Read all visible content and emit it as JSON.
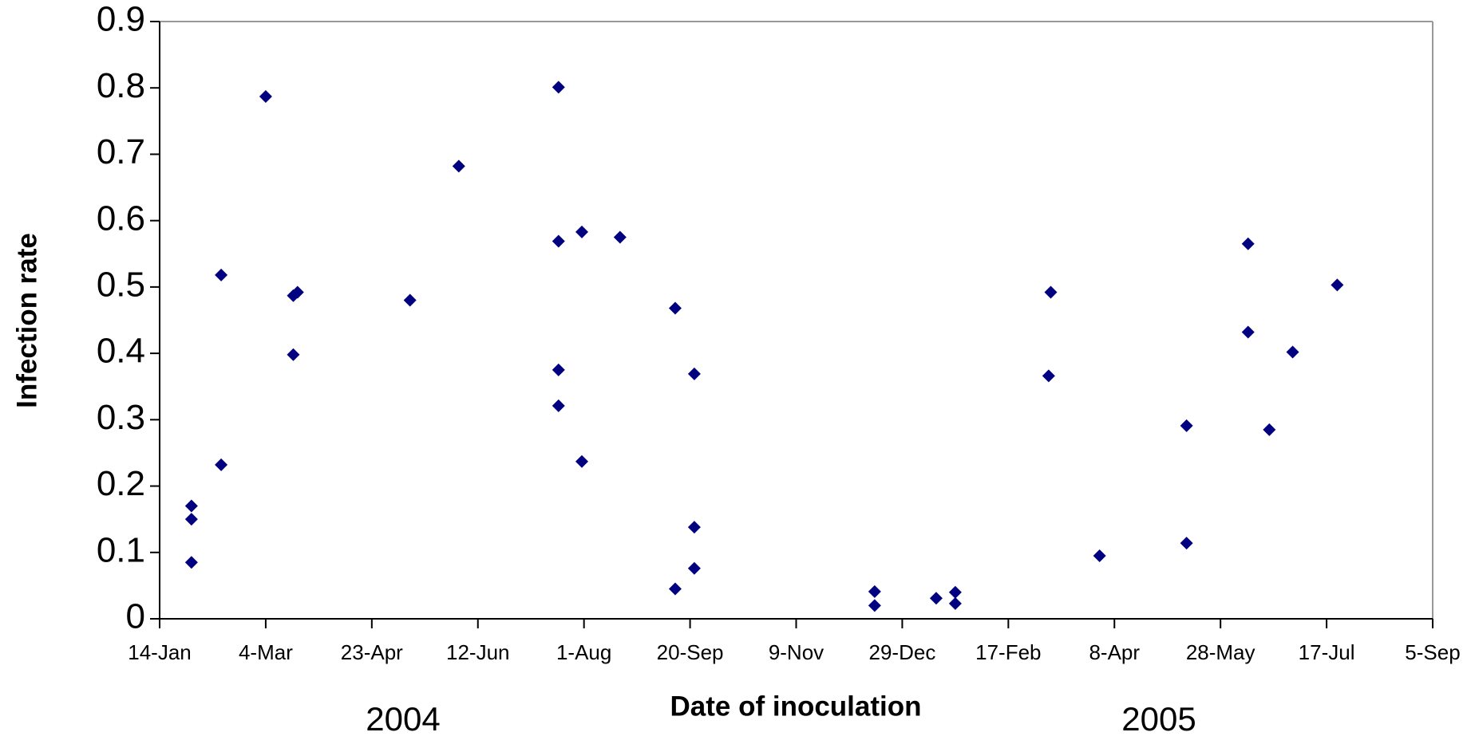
{
  "chart_data": {
    "type": "scatter",
    "x_label": "Date of inoculation",
    "y_label": "Infection rate",
    "annotations": [
      "2004",
      "2005"
    ],
    "color": "#000080",
    "x": [
      38015,
      38015,
      38015,
      38029,
      38029,
      38050,
      38063,
      38063,
      38065,
      38118,
      38141,
      38188,
      38188,
      38188,
      38188,
      38199,
      38199,
      38217,
      38243,
      38243,
      38252,
      38252,
      38252,
      38337,
      38337,
      38366,
      38375,
      38375,
      38420,
      38419,
      38443,
      38484,
      38484,
      38513,
      38513,
      38523,
      38534,
      38555
    ],
    "values": [
      0.17,
      0.15,
      0.085,
      0.518,
      0.232,
      0.787,
      0.398,
      0.487,
      0.492,
      0.48,
      0.682,
      0.801,
      0.569,
      0.375,
      0.321,
      0.583,
      0.237,
      0.575,
      0.468,
      0.045,
      0.369,
      0.138,
      0.076,
      0.041,
      0.02,
      0.031,
      0.04,
      0.023,
      0.492,
      0.366,
      0.095,
      0.291,
      0.114,
      0.565,
      0.432,
      0.285,
      0.402,
      0.503
    ],
    "xlim": [
      38000,
      38600
    ],
    "xticks": [
      {
        "value": 38000,
        "label": "14-Jan"
      },
      {
        "value": 38050,
        "label": "4-Mar"
      },
      {
        "value": 38100,
        "label": "23-Apr"
      },
      {
        "value": 38150,
        "label": "12-Jun"
      },
      {
        "value": 38200,
        "label": "1-Aug"
      },
      {
        "value": 38250,
        "label": "20-Sep"
      },
      {
        "value": 38300,
        "label": "9-Nov"
      },
      {
        "value": 38350,
        "label": "29-Dec"
      },
      {
        "value": 38400,
        "label": "17-Feb"
      },
      {
        "value": 38450,
        "label": "8-Apr"
      },
      {
        "value": 38500,
        "label": "28-May"
      },
      {
        "value": 38550,
        "label": "17-Jul"
      },
      {
        "value": 38600,
        "label": "5-Sep"
      }
    ],
    "ylim": [
      0,
      0.9
    ],
    "yticks": [
      0,
      0.1,
      0.2,
      0.3,
      0.4,
      0.5,
      0.6,
      0.7,
      0.8,
      0.9
    ],
    "grid": false
  }
}
